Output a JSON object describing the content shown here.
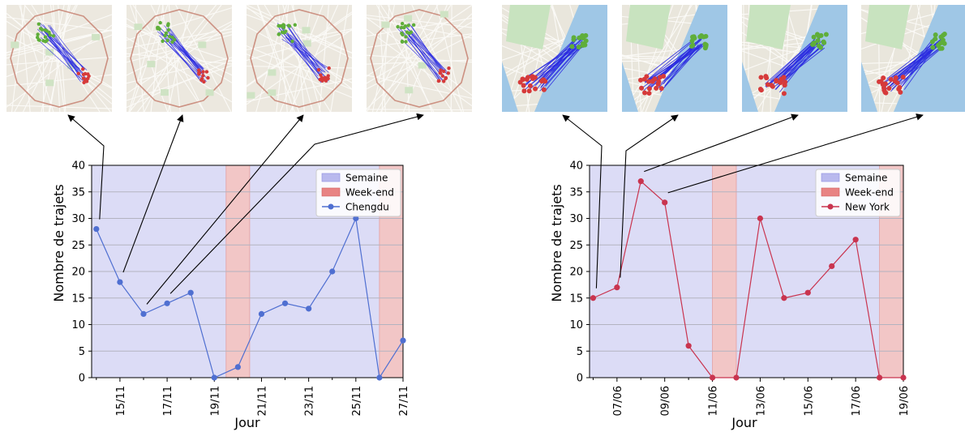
{
  "chart_data": [
    {
      "type": "line",
      "title": "",
      "xlabel": "Jour",
      "ylabel": "Nombre de trajets",
      "ylim": [
        0,
        40
      ],
      "yticks": [
        0,
        5,
        10,
        15,
        20,
        25,
        30,
        35,
        40
      ],
      "x_tick_labels": [
        "15/11",
        "17/11",
        "19/11",
        "21/11",
        "23/11",
        "25/11",
        "27/11"
      ],
      "x_tick_days": [
        15,
        17,
        19,
        21,
        23,
        25,
        27
      ],
      "xlim_days": [
        13.8,
        27.0
      ],
      "grid": "horizontal",
      "legend_position": "top-right",
      "legend": [
        "Semaine",
        "Week-end",
        "Chengdu"
      ],
      "series": [
        {
          "name": "Chengdu",
          "color": "#4f6fd1",
          "x_days": [
            14,
            15,
            16,
            17,
            18,
            19,
            20,
            21,
            22,
            23,
            24,
            25,
            26,
            27
          ],
          "values": [
            28,
            18,
            12,
            14,
            16,
            0,
            2,
            12,
            14,
            13,
            20,
            30,
            0,
            7
          ]
        }
      ],
      "weekend_spans_days": [
        [
          19.5,
          20.5
        ],
        [
          26.0,
          27.0
        ]
      ],
      "colors": {
        "week": "#dcdcf6",
        "weekend": "#f2c6c6"
      },
      "annotated_days": [
        14,
        15,
        16,
        17
      ]
    },
    {
      "type": "line",
      "title": "",
      "xlabel": "Jour",
      "ylabel": "Nombre de trajets",
      "ylim": [
        0,
        40
      ],
      "yticks": [
        0,
        5,
        10,
        15,
        20,
        25,
        30,
        35,
        40
      ],
      "x_tick_labels": [
        "07/06",
        "09/06",
        "11/06",
        "13/06",
        "15/06",
        "17/06",
        "19/06"
      ],
      "x_tick_days": [
        7,
        9,
        11,
        13,
        15,
        17,
        19
      ],
      "xlim_days": [
        5.85,
        19.0
      ],
      "grid": "horizontal",
      "legend_position": "top-right",
      "legend": [
        "Semaine",
        "Week-end",
        "New York"
      ],
      "series": [
        {
          "name": "New York",
          "color": "#c9344f",
          "x_days": [
            6,
            7,
            8,
            9,
            10,
            11,
            12,
            13,
            14,
            15,
            16,
            17,
            18,
            19
          ],
          "values": [
            15,
            17,
            37,
            33,
            6,
            0,
            0,
            30,
            15,
            16,
            21,
            26,
            0,
            0
          ]
        }
      ],
      "weekend_spans_days": [
        [
          11.0,
          12.0
        ],
        [
          18.0,
          19.0
        ]
      ],
      "colors": {
        "week": "#dcdcf6",
        "weekend": "#f2c6c6"
      },
      "annotated_days": [
        6,
        7,
        8,
        9
      ]
    }
  ],
  "thumbnails": {
    "chengdu": {
      "style": "street-map",
      "colors": {
        "start": "#5fae3a",
        "end": "#d63a3a",
        "route": "#2b2be0",
        "ring": "#c47a6a"
      }
    },
    "newyork": {
      "style": "street-map",
      "colors": {
        "start": "#5fae3a",
        "end": "#d63a3a",
        "route": "#2b2be0",
        "water": "#9fc7e6"
      }
    }
  }
}
